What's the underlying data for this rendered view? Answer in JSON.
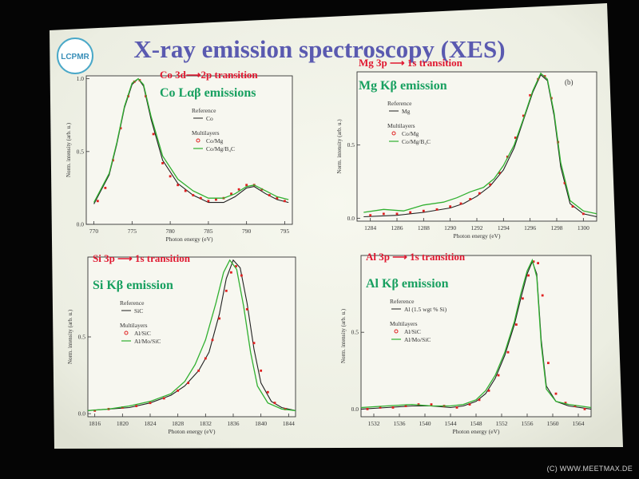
{
  "slide": {
    "title": "X-ray emission spectroscopy (XES)",
    "logo_text": "LCPMR",
    "watermark": "(C) WWW.MEETMAX.DE"
  },
  "colors": {
    "title": "#5a5ab0",
    "transition": "#e01830",
    "emission": "#18a060",
    "reference": "#202020",
    "series_red": "#e02020",
    "series_green": "#30b030",
    "slide_bg": "#f2f3ea",
    "plot_bg": "#f7f7f0"
  },
  "chart_data": [
    {
      "type": "line",
      "transition_label": "Co 3d⟶2p transition",
      "emission_label": "Co Lαβ emissions",
      "xlabel": "Photon energy (eV)",
      "ylabel": "Norm. intensity (arb. u.)",
      "xlim": [
        769,
        796
      ],
      "ylim": [
        0,
        1.02
      ],
      "xticks": [
        770,
        775,
        780,
        785,
        790,
        795
      ],
      "yticks": [
        0.0,
        0.5,
        1.0
      ],
      "ytick_labels": [
        "0.0",
        "0.5",
        "1.0"
      ],
      "panel_tag": "",
      "legend": {
        "ref_title": "Reference",
        "ref_items": [
          {
            "name": "Co",
            "style": "line-black"
          }
        ],
        "multi_title": "Multilayers",
        "multi_items": [
          {
            "name": "Co/Mg",
            "style": "marker-red"
          },
          {
            "name": "Co/Mg/B₄C",
            "style": "line-green"
          }
        ]
      },
      "series": [
        {
          "name": "Co",
          "style": "line-black",
          "x": [
            770,
            772,
            773,
            774,
            775,
            775.8,
            776.5,
            777.5,
            779,
            781,
            783,
            785,
            787,
            788.5,
            790,
            791,
            792.5,
            794,
            795.5
          ],
          "y": [
            0.14,
            0.34,
            0.55,
            0.8,
            0.96,
            1.0,
            0.95,
            0.72,
            0.44,
            0.28,
            0.2,
            0.15,
            0.15,
            0.19,
            0.25,
            0.26,
            0.21,
            0.17,
            0.15
          ]
        },
        {
          "name": "Co/Mg",
          "style": "marker-red",
          "x": [
            770.5,
            771.5,
            772.5,
            773.5,
            774.5,
            775.3,
            776,
            776.8,
            777.8,
            779,
            780,
            781,
            782,
            783,
            784,
            785,
            786,
            787,
            788,
            789,
            790,
            791,
            792,
            793,
            794,
            795
          ],
          "y": [
            0.16,
            0.25,
            0.44,
            0.66,
            0.88,
            0.98,
            0.99,
            0.88,
            0.62,
            0.42,
            0.33,
            0.27,
            0.23,
            0.2,
            0.18,
            0.16,
            0.17,
            0.18,
            0.21,
            0.24,
            0.27,
            0.27,
            0.24,
            0.2,
            0.18,
            0.16
          ]
        },
        {
          "name": "Co/Mg/B₄C",
          "style": "line-green",
          "x": [
            770,
            772,
            773,
            774,
            775,
            775.8,
            776.5,
            777.5,
            779,
            781,
            783,
            785,
            787,
            788.5,
            790,
            791,
            792.5,
            794,
            795.5
          ],
          "y": [
            0.15,
            0.35,
            0.56,
            0.81,
            0.97,
            1.0,
            0.96,
            0.74,
            0.47,
            0.31,
            0.23,
            0.18,
            0.18,
            0.21,
            0.26,
            0.27,
            0.23,
            0.19,
            0.17
          ]
        }
      ]
    },
    {
      "type": "line",
      "transition_label": "Mg 3p ⟶ 1s transition",
      "emission_label": "Mg Kβ emission",
      "xlabel": "Photon energy (eV)",
      "ylabel": "Norm. intensity (arb. u.)",
      "xlim": [
        1283,
        1301
      ],
      "ylim": [
        -0.02,
        1.0
      ],
      "xticks": [
        1284,
        1286,
        1288,
        1290,
        1292,
        1294,
        1296,
        1298,
        1300
      ],
      "yticks": [
        0.0,
        0.5
      ],
      "ytick_labels": [
        "0.0",
        "0.5"
      ],
      "panel_tag": "(b)",
      "legend": {
        "ref_title": "Reference",
        "ref_items": [
          {
            "name": "Mg",
            "style": "line-black"
          }
        ],
        "multi_title": "Multilayers",
        "multi_items": [
          {
            "name": "Co/Mg",
            "style": "marker-red"
          },
          {
            "name": "Co/Mg/B₄C",
            "style": "line-green"
          }
        ]
      },
      "series": [
        {
          "name": "Mg",
          "style": "line-black",
          "x": [
            1283.5,
            1286,
            1288,
            1290,
            1291,
            1292,
            1293,
            1294,
            1294.8,
            1295.5,
            1296.2,
            1296.8,
            1297.3,
            1297.8,
            1298.3,
            1299,
            1300,
            1301
          ],
          "y": [
            0.01,
            0.02,
            0.04,
            0.07,
            0.1,
            0.15,
            0.22,
            0.33,
            0.48,
            0.67,
            0.86,
            0.98,
            0.94,
            0.7,
            0.35,
            0.1,
            0.03,
            0.01
          ]
        },
        {
          "name": "Co/Mg",
          "style": "marker-red",
          "x": [
            1284,
            1285,
            1286,
            1287,
            1288,
            1289,
            1290,
            1290.8,
            1291.5,
            1292.2,
            1293,
            1293.7,
            1294.3,
            1294.9,
            1295.5,
            1296,
            1296.6,
            1297.1,
            1297.6,
            1298.1,
            1298.6,
            1299.2,
            1300
          ],
          "y": [
            0.02,
            0.03,
            0.03,
            0.04,
            0.05,
            0.06,
            0.08,
            0.1,
            0.13,
            0.17,
            0.23,
            0.31,
            0.42,
            0.55,
            0.7,
            0.84,
            0.95,
            0.97,
            0.82,
            0.52,
            0.24,
            0.08,
            0.03
          ]
        },
        {
          "name": "Co/Mg/B₄C",
          "style": "line-green",
          "x": [
            1283.5,
            1285,
            1286.5,
            1288,
            1289.5,
            1290.5,
            1291.5,
            1292.5,
            1293.3,
            1294,
            1294.8,
            1295.5,
            1296.2,
            1296.8,
            1297.3,
            1297.8,
            1298.3,
            1299,
            1300,
            1301
          ],
          "y": [
            0.04,
            0.06,
            0.05,
            0.09,
            0.11,
            0.14,
            0.18,
            0.21,
            0.27,
            0.36,
            0.5,
            0.68,
            0.87,
            0.99,
            0.95,
            0.72,
            0.38,
            0.12,
            0.05,
            0.03
          ]
        }
      ]
    },
    {
      "type": "line",
      "transition_label": "Si 3p ⟶ 1s transition",
      "emission_label": "Si Kβ emission",
      "xlabel": "Photon energy (eV)",
      "ylabel": "Norm. intensity (arb. u.)",
      "xlim": [
        1815,
        1845
      ],
      "ylim": [
        -0.02,
        1.02
      ],
      "xticks": [
        1816,
        1820,
        1824,
        1828,
        1832,
        1836,
        1840,
        1844
      ],
      "yticks": [
        0.0,
        0.5
      ],
      "ytick_labels": [
        "0.0",
        "0.5"
      ],
      "panel_tag": "",
      "legend": {
        "ref_title": "Reference",
        "ref_items": [
          {
            "name": "SiC",
            "style": "line-black"
          }
        ],
        "multi_title": "Multilayers",
        "multi_items": [
          {
            "name": "Al/SiC",
            "style": "marker-red"
          },
          {
            "name": "Al/Mo/SiC",
            "style": "line-green"
          }
        ]
      },
      "series": [
        {
          "name": "SiC",
          "style": "line-black",
          "x": [
            1815,
            1818,
            1821,
            1824,
            1827,
            1829,
            1831,
            1832.5,
            1834,
            1835,
            1836,
            1837,
            1838,
            1839,
            1840,
            1841.5,
            1843,
            1845
          ],
          "y": [
            0.02,
            0.03,
            0.04,
            0.07,
            0.12,
            0.18,
            0.28,
            0.4,
            0.65,
            0.88,
            1.0,
            0.95,
            0.72,
            0.42,
            0.2,
            0.08,
            0.04,
            0.02
          ]
        },
        {
          "name": "Al/SiC",
          "style": "marker-red",
          "x": [
            1816,
            1818,
            1820,
            1822,
            1824,
            1826,
            1828,
            1829.5,
            1831,
            1832,
            1833,
            1834,
            1835,
            1835.7,
            1836.4,
            1837.2,
            1838,
            1839,
            1840,
            1841,
            1842,
            1843.5
          ],
          "y": [
            0.02,
            0.03,
            0.04,
            0.05,
            0.07,
            0.1,
            0.15,
            0.2,
            0.28,
            0.36,
            0.48,
            0.62,
            0.8,
            0.92,
            0.96,
            0.9,
            0.68,
            0.46,
            0.28,
            0.14,
            0.07,
            0.03
          ]
        },
        {
          "name": "Al/Mo/SiC",
          "style": "line-green",
          "x": [
            1815,
            1818,
            1821,
            1824,
            1827,
            1829,
            1830.5,
            1832,
            1833.5,
            1834.6,
            1835.5,
            1836.5,
            1837.5,
            1838.5,
            1839.5,
            1841,
            1843,
            1845
          ],
          "y": [
            0.02,
            0.03,
            0.05,
            0.08,
            0.13,
            0.21,
            0.32,
            0.48,
            0.72,
            0.92,
            1.0,
            0.94,
            0.7,
            0.4,
            0.18,
            0.07,
            0.03,
            0.02
          ]
        }
      ]
    },
    {
      "type": "line",
      "transition_label": "Al 3p ⟶ 1s transition",
      "emission_label": "Al Kβ emission",
      "xlabel": "Photon energy (eV)",
      "ylabel": "Norm. intensity (arb. u.)",
      "xlim": [
        1530,
        1566
      ],
      "ylim": [
        -0.05,
        1.0
      ],
      "xticks": [
        1532,
        1536,
        1540,
        1544,
        1548,
        1552,
        1556,
        1560,
        1564
      ],
      "yticks": [
        0.0,
        0.5
      ],
      "ytick_labels": [
        "0.0",
        "0.5"
      ],
      "panel_tag": "",
      "legend": {
        "ref_title": "Reference",
        "ref_items": [
          {
            "name": "Al (1.5 wgt % Si)",
            "style": "line-black"
          }
        ],
        "multi_title": "Multilayers",
        "multi_items": [
          {
            "name": "Al/SiC",
            "style": "marker-red"
          },
          {
            "name": "Al/Mo/SiC",
            "style": "line-green"
          }
        ]
      },
      "series": [
        {
          "name": "Al (1.5 wgt % Si)",
          "style": "line-black",
          "x": [
            1530,
            1534,
            1538,
            1541,
            1544,
            1546,
            1548,
            1549.5,
            1551,
            1552.5,
            1554,
            1555,
            1556,
            1556.8,
            1557.5,
            1558.2,
            1559,
            1560.5,
            1562.5,
            1566
          ],
          "y": [
            0.0,
            0.01,
            0.02,
            0.02,
            0.01,
            0.02,
            0.05,
            0.1,
            0.2,
            0.35,
            0.55,
            0.72,
            0.88,
            0.96,
            0.88,
            0.45,
            0.15,
            0.05,
            0.02,
            0.0
          ]
        },
        {
          "name": "Al/SiC",
          "style": "marker-red",
          "x": [
            1531,
            1533,
            1535,
            1537,
            1539,
            1541,
            1543,
            1545,
            1547,
            1548.5,
            1550,
            1551.5,
            1553,
            1554.3,
            1555.3,
            1556.2,
            1557,
            1557.7,
            1558.4,
            1559.3,
            1560.5,
            1562,
            1563.5,
            1565
          ],
          "y": [
            0.0,
            0.01,
            0.01,
            0.02,
            0.03,
            0.03,
            0.02,
            0.01,
            0.03,
            0.06,
            0.12,
            0.22,
            0.37,
            0.55,
            0.72,
            0.87,
            0.96,
            0.95,
            0.74,
            0.3,
            0.1,
            0.04,
            0.02,
            0.0
          ]
        },
        {
          "name": "Al/Mo/SiC",
          "style": "line-green",
          "x": [
            1530,
            1534,
            1538,
            1541,
            1544,
            1546,
            1548,
            1549.5,
            1551,
            1552.5,
            1554,
            1555,
            1556,
            1556.8,
            1557.5,
            1558.2,
            1559,
            1560.5,
            1562.5,
            1566
          ],
          "y": [
            0.01,
            0.02,
            0.03,
            0.02,
            0.02,
            0.03,
            0.06,
            0.12,
            0.22,
            0.37,
            0.57,
            0.75,
            0.9,
            0.97,
            0.86,
            0.42,
            0.13,
            0.05,
            0.03,
            0.01
          ]
        }
      ]
    }
  ]
}
